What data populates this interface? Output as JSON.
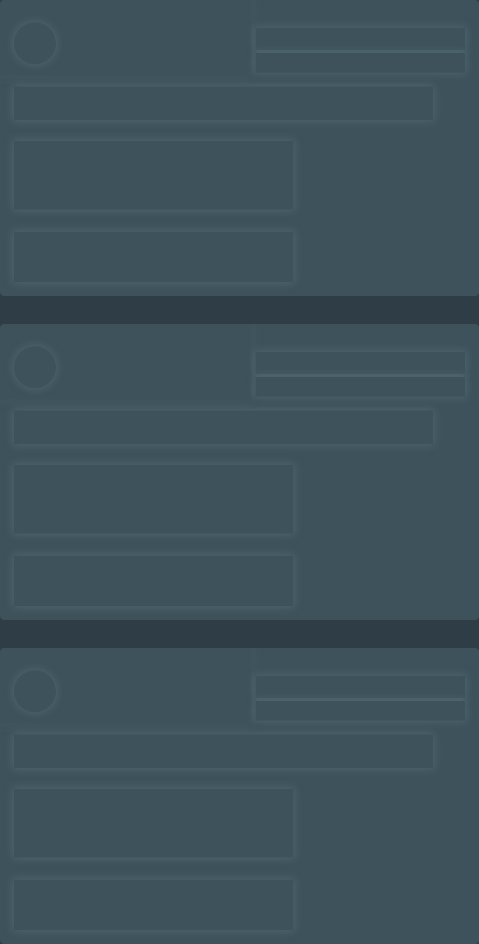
{
  "theme": {
    "page_bg": "#2f3d47",
    "card_bg": "#3e525b",
    "placeholder_fill": "#3e525b",
    "placeholder_glow": "#5a707a"
  },
  "state": "loading",
  "cards": [
    {
      "id": 1
    },
    {
      "id": 2
    },
    {
      "id": 3
    }
  ]
}
